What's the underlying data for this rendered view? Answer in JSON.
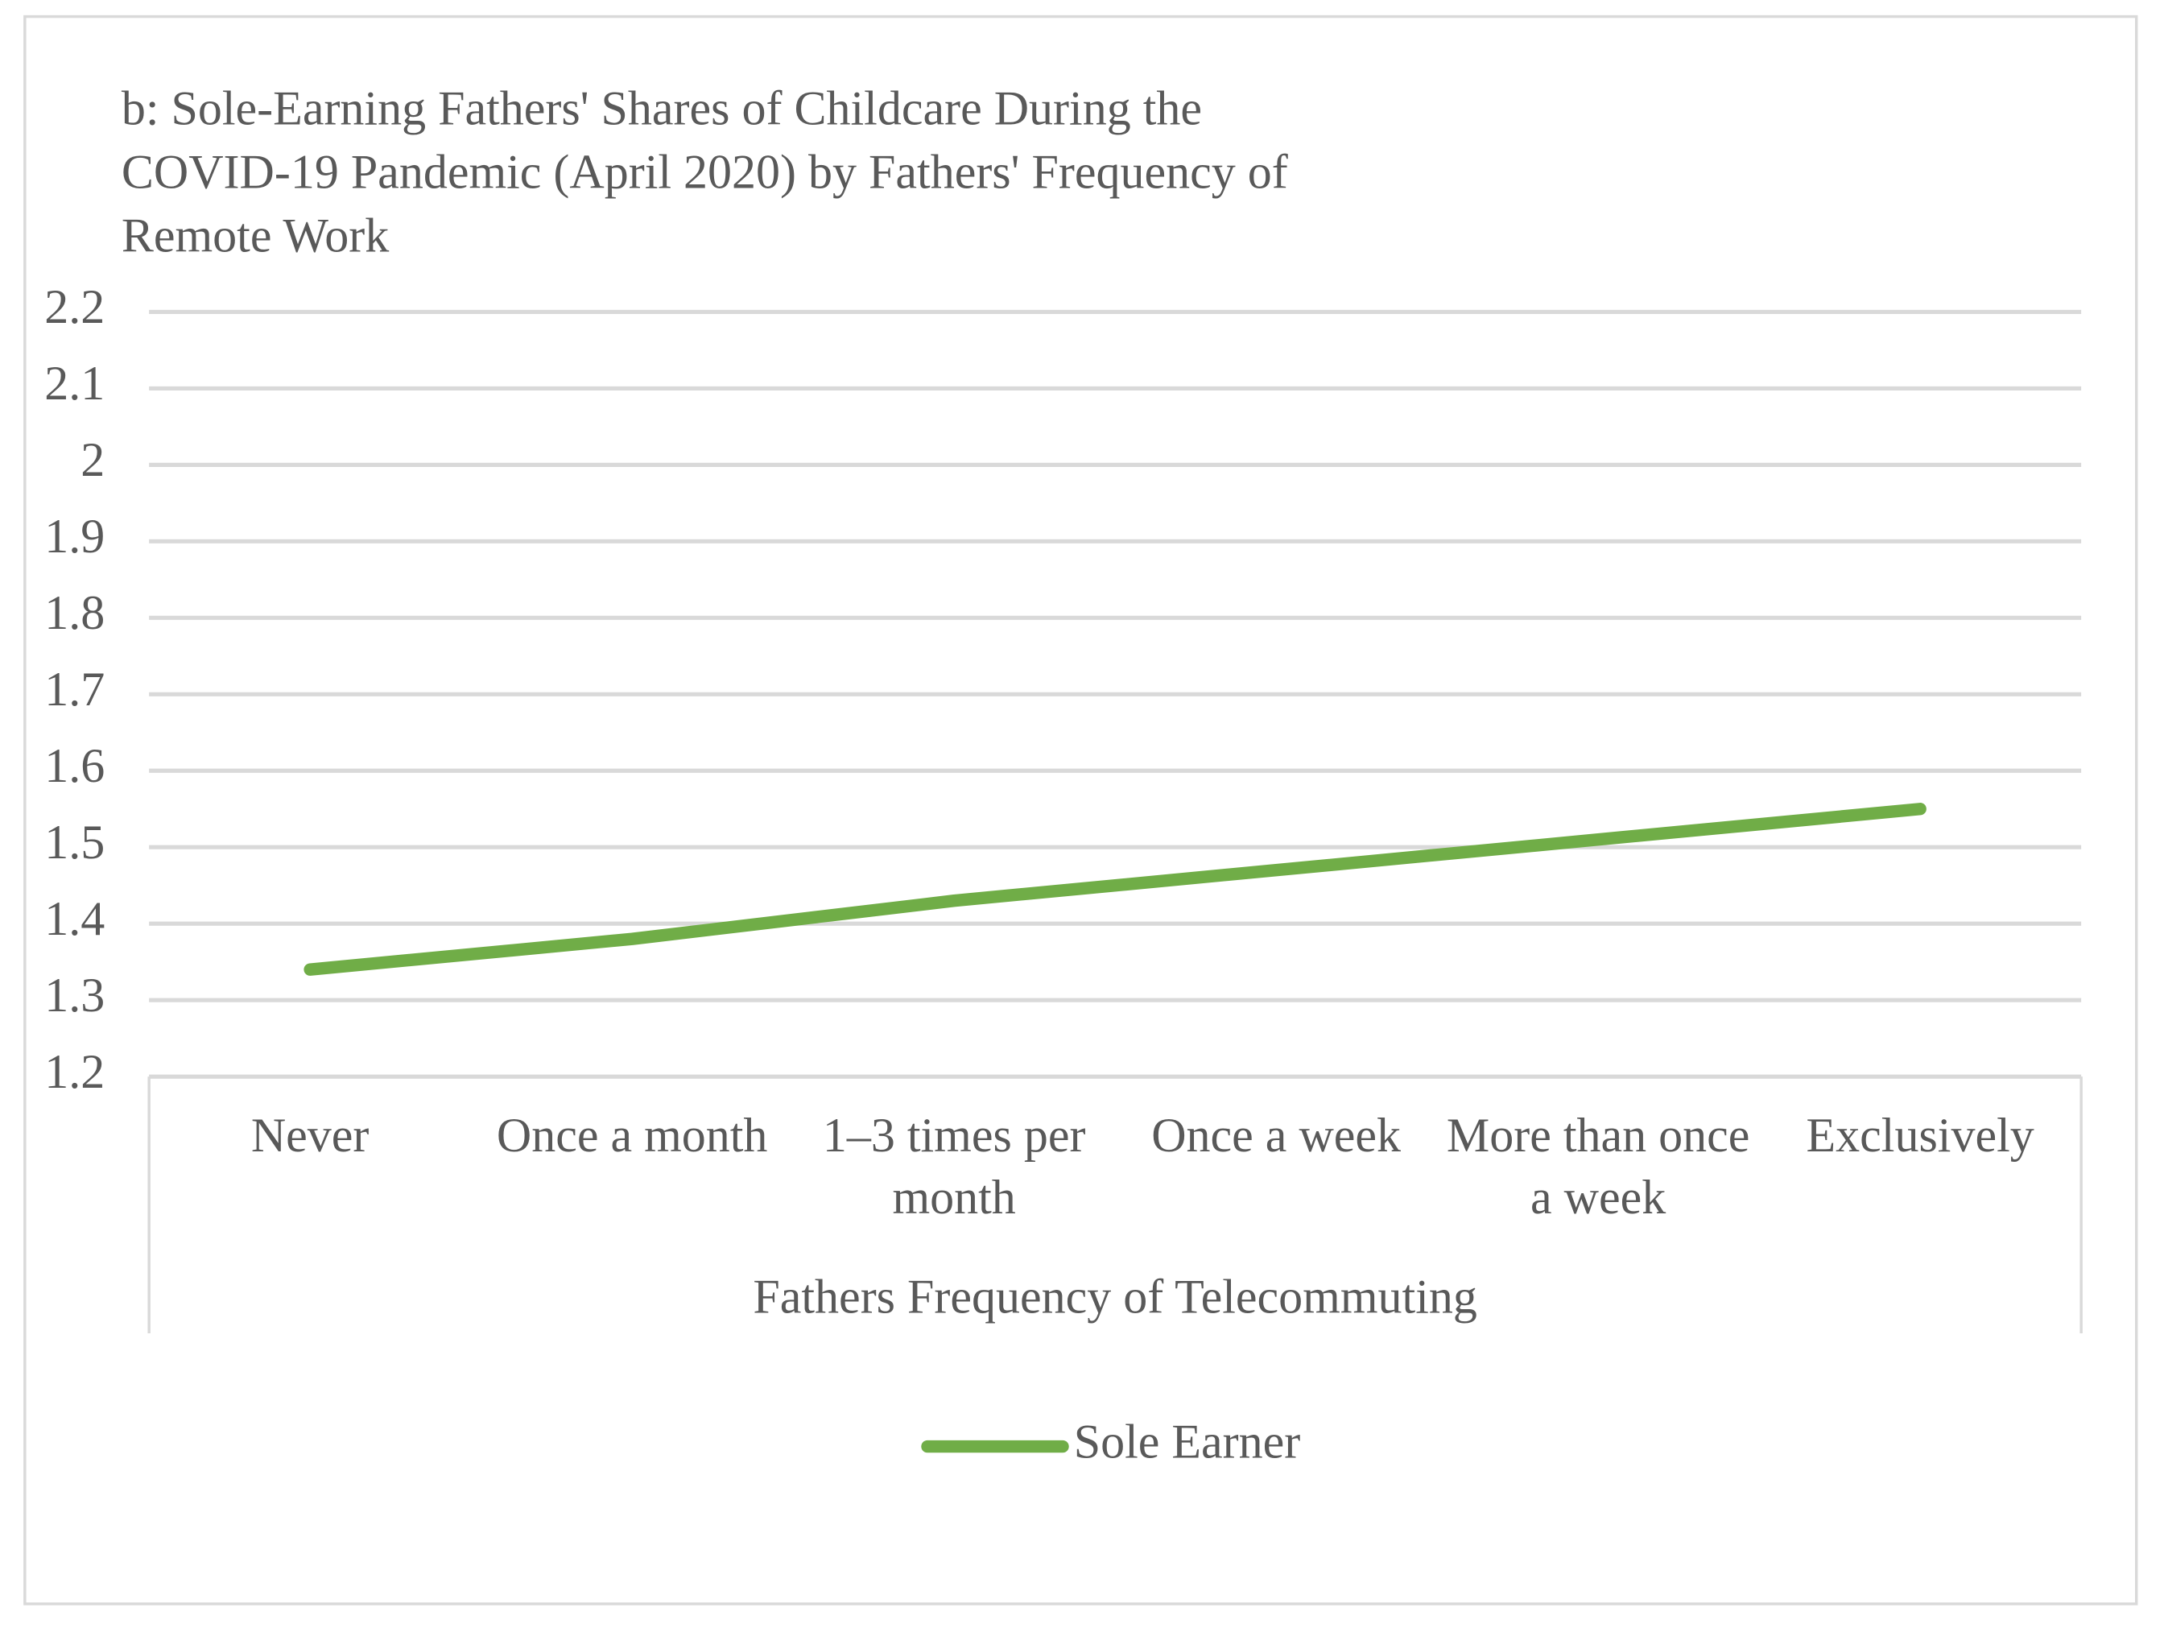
{
  "chart_data": {
    "type": "line",
    "title": "b: Sole-Earning Fathers' Shares of Childcare During the COVID-19 Pandemic (April 2020) by Fathers' Frequency of Remote Work",
    "x_label": "Fathers Frequency of Telecommuting",
    "categories": [
      "Never",
      "Once a month",
      "1–3 times per month",
      "Once a week",
      "More than once a week",
      "Exclusively"
    ],
    "series": [
      {
        "name": "Sole Earner",
        "color": "#70ad47",
        "values": [
          1.34,
          1.38,
          1.43,
          1.47,
          1.51,
          1.55
        ]
      }
    ],
    "ylim": [
      1.2,
      2.2
    ],
    "yticks": [
      1.2,
      1.3,
      1.4,
      1.5,
      1.6,
      1.7,
      1.8,
      1.9,
      2,
      2.1,
      2.2
    ],
    "grid": true,
    "legend": "bottom"
  }
}
